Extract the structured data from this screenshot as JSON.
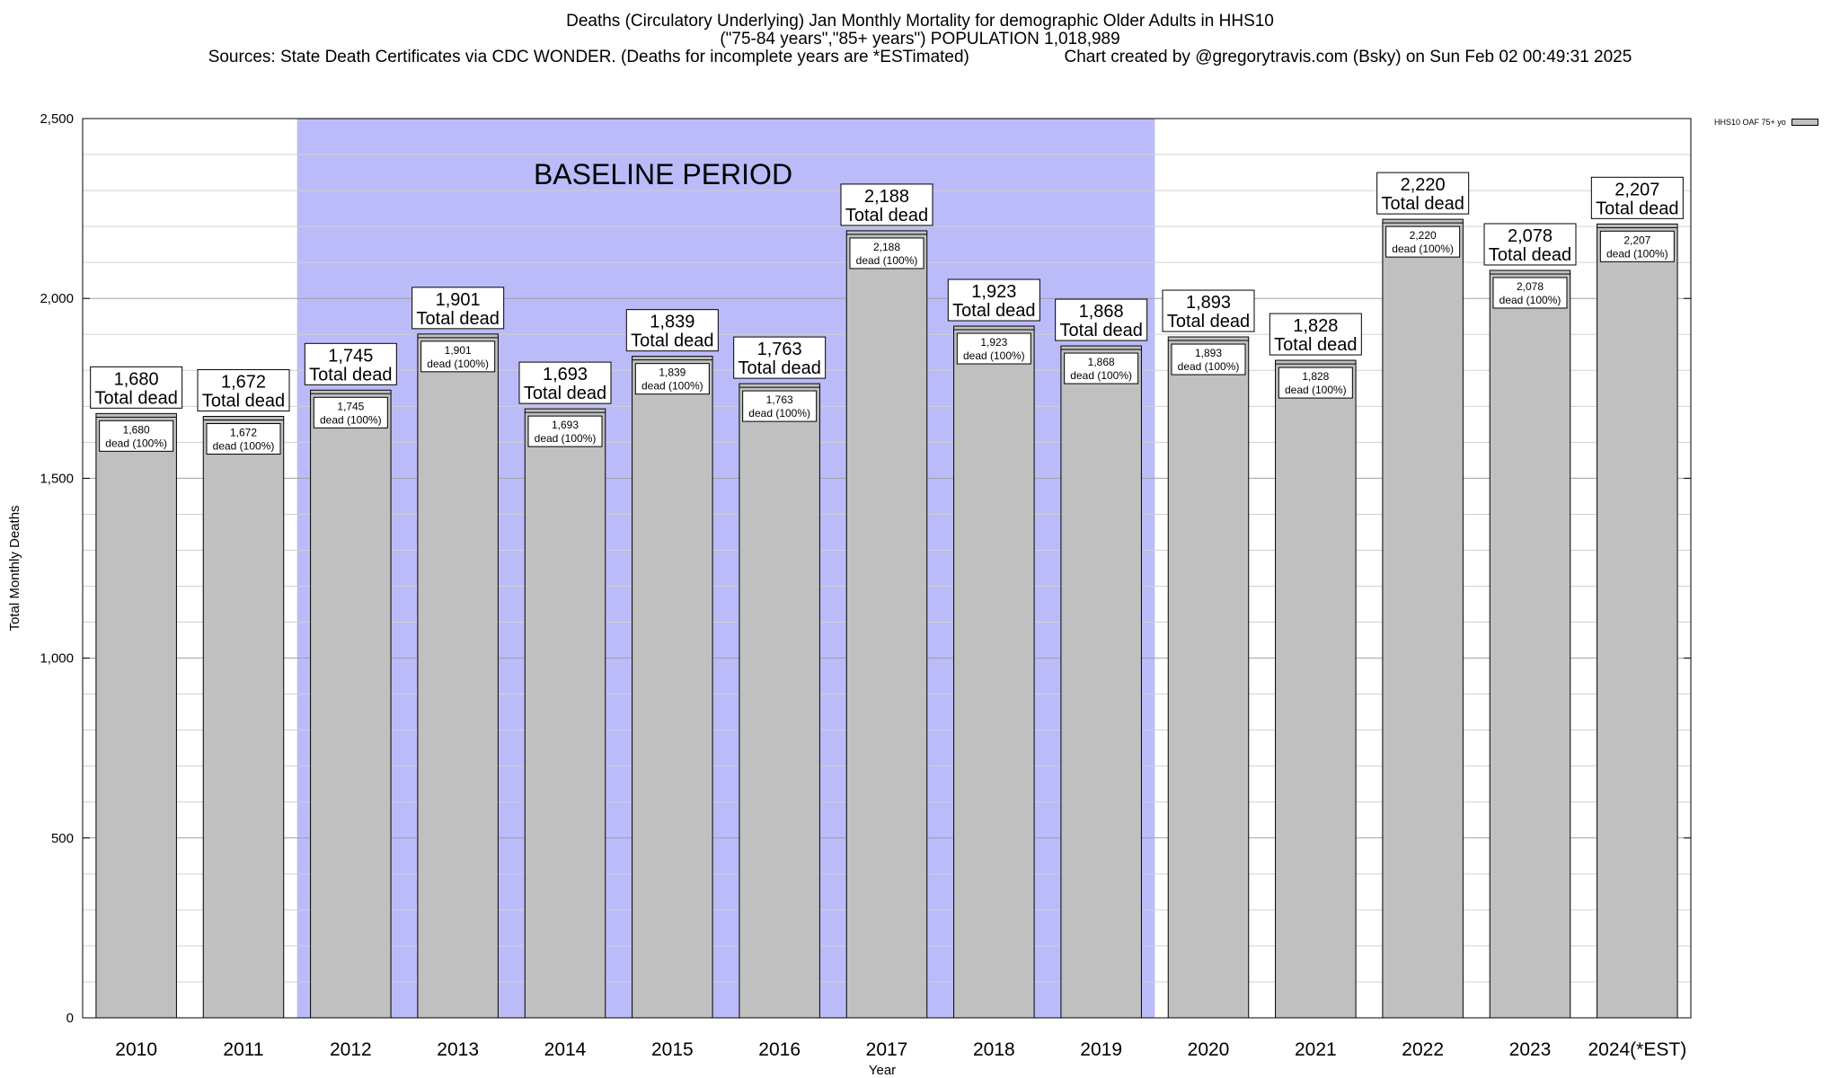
{
  "chart_data": {
    "type": "bar",
    "title_lines": [
      "Deaths (Circulatory Underlying) Jan Monthly Mortality for demographic Older Adults in HHS10",
      "(\"75-84 years\",\"85+ years\") POPULATION 1,018,989"
    ],
    "sources": "Sources: State Death Certificates via CDC WONDER. (Deaths for incomplete years are *ESTimated)",
    "credit": "Chart created by @gregorytravis.com (Bsky) on Sun Feb 02 00:49:31 2025",
    "xlabel": "Year",
    "ylabel": "Total Monthly Deaths",
    "ylim": [
      0,
      2500
    ],
    "yticks": [
      0,
      500,
      1000,
      1500,
      2000,
      2500
    ],
    "ytick_labels": [
      "0",
      "500",
      "1,000",
      "1,500",
      "2,000",
      "2,500"
    ],
    "categories": [
      "2010",
      "2011",
      "2012",
      "2013",
      "2014",
      "2015",
      "2016",
      "2017",
      "2018",
      "2019",
      "2020",
      "2021",
      "2022",
      "2023",
      "2024(*EST)"
    ],
    "values": [
      1680,
      1672,
      1745,
      1901,
      1693,
      1839,
      1763,
      2188,
      1923,
      1868,
      1893,
      1828,
      2220,
      2078,
      2207
    ],
    "value_labels": [
      "1,680",
      "1,672",
      "1,745",
      "1,901",
      "1,693",
      "1,839",
      "1,763",
      "2,188",
      "1,923",
      "1,868",
      "1,893",
      "1,828",
      "2,220",
      "2,078",
      "2,207"
    ],
    "label_suffix_top": "Total dead",
    "label_suffix_inner": "dead (100%)",
    "baseline": {
      "label": "BASELINE PERIOD",
      "from": "2012",
      "to": "2019",
      "color": "#bbbbf9"
    },
    "bar_color": "#c0c0c0",
    "grid": true,
    "legend": {
      "position": "top-right",
      "entries": [
        {
          "name": "HHS10 OAF 75+ yo",
          "color": "#c0c0c0"
        }
      ]
    }
  }
}
